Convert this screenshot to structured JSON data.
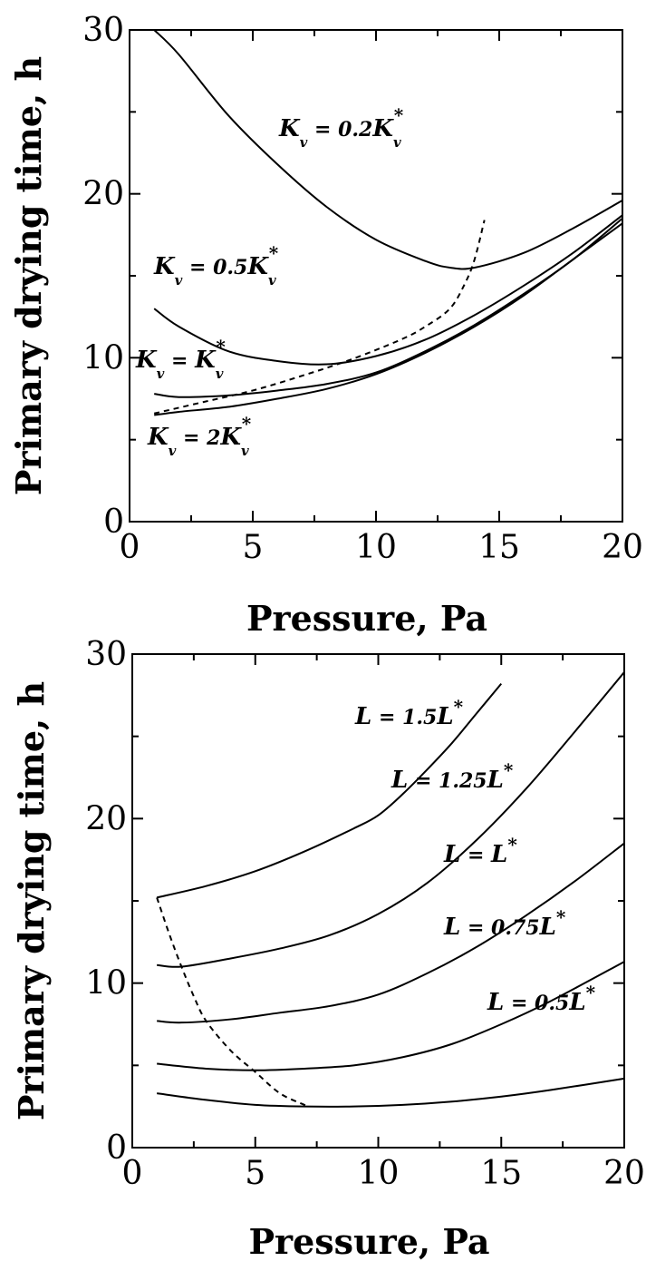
{
  "chart_data": [
    {
      "type": "line",
      "xlabel": "Pressure, Pa",
      "ylabel": "Primary drying time, h",
      "xlim": [
        0,
        20
      ],
      "ylim": [
        0,
        30
      ],
      "xticks": [
        "0",
        "5",
        "10",
        "15",
        "20"
      ],
      "yticks": [
        "0",
        "10",
        "20",
        "30"
      ],
      "series": [
        {
          "name": "K_v = 0.2K_v*",
          "label_parts": {
            "var": "K",
            "sub": "v",
            "eq": " = 0.2",
            "rhs_var": "K",
            "rhs_sub": "v",
            "rhs_sup": "*"
          },
          "style": "solid",
          "points": [
            [
              1,
              30
            ],
            [
              2,
              28.5
            ],
            [
              4,
              24.8
            ],
            [
              6,
              21.8
            ],
            [
              8,
              19.2
            ],
            [
              10,
              17.2
            ],
            [
              12,
              15.9
            ],
            [
              13,
              15.5
            ],
            [
              14,
              15.5
            ],
            [
              16,
              16.4
            ],
            [
              18,
              17.9
            ],
            [
              20,
              19.6
            ]
          ]
        },
        {
          "name": "K_v = 0.5K_v*",
          "label_parts": {
            "var": "K",
            "sub": "v",
            "eq": " = 0.5",
            "rhs_var": "K",
            "rhs_sub": "v",
            "rhs_sup": "*"
          },
          "style": "solid",
          "points": [
            [
              1,
              13
            ],
            [
              2,
              11.9
            ],
            [
              4,
              10.4
            ],
            [
              6,
              9.8
            ],
            [
              8,
              9.6
            ],
            [
              10,
              10.1
            ],
            [
              12,
              11.1
            ],
            [
              14,
              12.6
            ],
            [
              16,
              14.4
            ],
            [
              18,
              16.4
            ],
            [
              20,
              18.7
            ]
          ]
        },
        {
          "name": "K_v = K_v*",
          "label_parts": {
            "var": "K",
            "sub": "v",
            "eq": " = ",
            "rhs_var": "K",
            "rhs_sub": "v",
            "rhs_sup": "*"
          },
          "style": "solid",
          "points": [
            [
              1,
              7.8
            ],
            [
              2,
              7.6
            ],
            [
              4,
              7.7
            ],
            [
              6,
              8.0
            ],
            [
              8,
              8.4
            ],
            [
              10,
              9.1
            ],
            [
              12,
              10.4
            ],
            [
              14,
              12.0
            ],
            [
              16,
              13.9
            ],
            [
              18,
              16.0
            ],
            [
              20,
              18.5
            ]
          ]
        },
        {
          "name": "K_v = 2K_v*",
          "label_parts": {
            "var": "K",
            "sub": "v",
            "eq": " = 2",
            "rhs_var": "K",
            "rhs_sub": "v",
            "rhs_sup": "*"
          },
          "style": "solid",
          "points": [
            [
              1,
              6.5
            ],
            [
              2,
              6.7
            ],
            [
              4,
              7.0
            ],
            [
              6,
              7.5
            ],
            [
              8,
              8.1
            ],
            [
              10,
              9.0
            ],
            [
              12,
              10.3
            ],
            [
              14,
              11.9
            ],
            [
              16,
              13.8
            ],
            [
              18,
              16.0
            ],
            [
              20,
              18.2
            ]
          ]
        },
        {
          "style": "dashed",
          "points": [
            [
              1,
              6.6
            ],
            [
              3,
              7.3
            ],
            [
              5,
              8.0
            ],
            [
              7,
              8.9
            ],
            [
              9,
              9.9
            ],
            [
              11,
              11.1
            ],
            [
              12,
              11.9
            ],
            [
              13,
              13.0
            ],
            [
              13.6,
              14.5
            ],
            [
              14,
              16.0
            ],
            [
              14.4,
              18.4
            ]
          ]
        }
      ]
    },
    {
      "type": "line",
      "xlabel": "Pressure, Pa",
      "ylabel": "Primary drying time, h",
      "xlim": [
        0,
        20
      ],
      "ylim": [
        0,
        30
      ],
      "xticks": [
        "0",
        "5",
        "10",
        "15",
        "20"
      ],
      "yticks": [
        "0",
        "10",
        "20",
        "30"
      ],
      "series": [
        {
          "name": "L = 1.5L*",
          "label_parts": {
            "var": "L",
            "eq": " = 1.5",
            "rhs_var": "L",
            "rhs_sup": "*"
          },
          "style": "solid",
          "points": [
            [
              1,
              15.2
            ],
            [
              3,
              15.9
            ],
            [
              5,
              16.8
            ],
            [
              7,
              18.0
            ],
            [
              9,
              19.4
            ],
            [
              10,
              20.2
            ],
            [
              11,
              21.5
            ],
            [
              12,
              23.0
            ],
            [
              13,
              24.6
            ],
            [
              14,
              26.4
            ],
            [
              15,
              28.2
            ]
          ]
        },
        {
          "name": "L = 1.25L*",
          "label_parts": {
            "var": "L",
            "eq": " = 1.25",
            "rhs_var": "L",
            "rhs_sup": "*"
          },
          "style": "solid",
          "points": [
            [
              1,
              11.1
            ],
            [
              2,
              11.0
            ],
            [
              4,
              11.5
            ],
            [
              6,
              12.1
            ],
            [
              8,
              12.9
            ],
            [
              10,
              14.2
            ],
            [
              12,
              16.1
            ],
            [
              14,
              18.7
            ],
            [
              16,
              21.8
            ],
            [
              18,
              25.3
            ],
            [
              20,
              28.9
            ]
          ]
        },
        {
          "name": "L = L*",
          "label_parts": {
            "var": "L",
            "eq": " = ",
            "rhs_var": "L",
            "rhs_sup": "*"
          },
          "style": "solid",
          "points": [
            [
              1,
              7.7
            ],
            [
              2,
              7.6
            ],
            [
              4,
              7.8
            ],
            [
              6,
              8.2
            ],
            [
              8,
              8.6
            ],
            [
              10,
              9.3
            ],
            [
              12,
              10.6
            ],
            [
              14,
              12.2
            ],
            [
              16,
              14.1
            ],
            [
              18,
              16.2
            ],
            [
              20,
              18.5
            ]
          ]
        },
        {
          "name": "L = 0.75L*",
          "label_parts": {
            "var": "L",
            "eq": " = 0.75",
            "rhs_var": "L",
            "rhs_sup": "*"
          },
          "style": "solid",
          "points": [
            [
              1,
              5.1
            ],
            [
              3,
              4.8
            ],
            [
              5,
              4.7
            ],
            [
              7,
              4.8
            ],
            [
              9,
              5.0
            ],
            [
              11,
              5.5
            ],
            [
              13,
              6.3
            ],
            [
              15,
              7.5
            ],
            [
              17,
              8.9
            ],
            [
              20,
              11.3
            ]
          ]
        },
        {
          "name": "L = 0.5L*",
          "label_parts": {
            "var": "L",
            "eq": " = 0.5",
            "rhs_var": "L",
            "rhs_sup": "*"
          },
          "style": "solid",
          "points": [
            [
              1,
              3.3
            ],
            [
              3,
              2.9
            ],
            [
              5,
              2.6
            ],
            [
              7,
              2.5
            ],
            [
              9,
              2.5
            ],
            [
              11,
              2.6
            ],
            [
              13,
              2.8
            ],
            [
              15,
              3.1
            ],
            [
              17,
              3.5
            ],
            [
              20,
              4.2
            ]
          ]
        },
        {
          "style": "dashed",
          "points": [
            [
              1,
              15.2
            ],
            [
              1.5,
              13.0
            ],
            [
              2,
              11.0
            ],
            [
              2.5,
              9.2
            ],
            [
              3,
              7.7
            ],
            [
              4,
              5.9
            ],
            [
              5,
              4.6
            ],
            [
              6,
              3.3
            ],
            [
              7,
              2.6
            ],
            [
              7.2,
              2.5
            ]
          ]
        }
      ]
    }
  ]
}
